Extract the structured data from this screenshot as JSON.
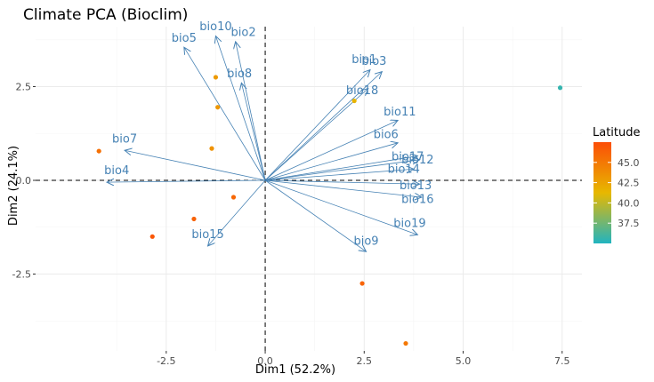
{
  "chart_data": {
    "type": "scatter",
    "title": "Climate PCA (Bioclim)",
    "xlabel": "Dim1 (52.2%)",
    "ylabel": "Dim2 (24.1%)",
    "xlim": [
      -5.8,
      8.0
    ],
    "ylim": [
      -4.55,
      4.1
    ],
    "xticks": [
      -2.5,
      0.0,
      2.5,
      5.0,
      7.5
    ],
    "xtick_labels": [
      "-2.5",
      "0.0",
      "2.5",
      "5.0",
      "7.5"
    ],
    "yticks": [
      -2.5,
      0.0,
      2.5
    ],
    "ytick_labels": [
      "-2.5",
      "0.0",
      "2.5"
    ],
    "grid": true,
    "reference_lines": "dashed lines at x = 0 and y = 0",
    "legend": {
      "title": "Latitude",
      "position": "right",
      "ticks": [
        45.0,
        42.5,
        40.0,
        37.5
      ],
      "tick_labels": [
        "45.0",
        "42.5",
        "40.0",
        "37.5"
      ],
      "range": [
        35.0,
        47.5
      ],
      "gradient_colors": [
        "#21b4c0",
        "#e7b800",
        "#fc4e07"
      ]
    },
    "points": [
      {
        "x": 7.45,
        "y": 2.47,
        "latitude": 35.6
      },
      {
        "x": 2.25,
        "y": 2.12,
        "latitude": 41.5
      },
      {
        "x": -1.25,
        "y": 2.75,
        "latitude": 43.0
      },
      {
        "x": -1.2,
        "y": 1.95,
        "latitude": 43.2
      },
      {
        "x": -1.35,
        "y": 0.85,
        "latitude": 43.5
      },
      {
        "x": -4.2,
        "y": 0.78,
        "latitude": 45.5
      },
      {
        "x": -0.8,
        "y": -0.45,
        "latitude": 46.0
      },
      {
        "x": -1.8,
        "y": -1.03,
        "latitude": 46.3
      },
      {
        "x": -2.85,
        "y": -1.5,
        "latitude": 47.0
      },
      {
        "x": 2.45,
        "y": -2.75,
        "latitude": 46.2
      },
      {
        "x": 3.55,
        "y": -4.35,
        "latitude": 45.0
      }
    ],
    "vectors": [
      {
        "name": "bio1",
        "x": 2.65,
        "y": 2.95,
        "label_x": 2.5,
        "label_y": 3.25
      },
      {
        "name": "bio3",
        "x": 2.95,
        "y": 2.9,
        "label_x": 2.75,
        "label_y": 3.2
      },
      {
        "name": "bio18",
        "x": 2.6,
        "y": 2.45,
        "label_x": 2.45,
        "label_y": 2.42
      },
      {
        "name": "bio11",
        "x": 3.35,
        "y": 1.6,
        "label_x": 3.4,
        "label_y": 1.85
      },
      {
        "name": "bio6",
        "x": 3.35,
        "y": 1.0,
        "label_x": 3.05,
        "label_y": 1.25
      },
      {
        "name": "bio17",
        "x": 3.85,
        "y": 0.65,
        "label_x": 3.6,
        "label_y": 0.65
      },
      {
        "name": "bio12",
        "x": 3.9,
        "y": 0.55,
        "label_x": 3.85,
        "label_y": 0.57
      },
      {
        "name": "bio14",
        "x": 3.75,
        "y": 0.3,
        "label_x": 3.5,
        "label_y": 0.32
      },
      {
        "name": "bio13",
        "x": 3.9,
        "y": -0.1,
        "label_x": 3.8,
        "label_y": -0.12
      },
      {
        "name": "bio16",
        "x": 3.95,
        "y": -0.45,
        "label_x": 3.85,
        "label_y": -0.48
      },
      {
        "name": "bio19",
        "x": 3.85,
        "y": -1.45,
        "label_x": 3.65,
        "label_y": -1.12
      },
      {
        "name": "bio9",
        "x": 2.55,
        "y": -1.9,
        "label_x": 2.55,
        "label_y": -1.6
      },
      {
        "name": "bio15",
        "x": -1.45,
        "y": -1.75,
        "label_x": -1.45,
        "label_y": -1.42
      },
      {
        "name": "bio4",
        "x": -4.0,
        "y": -0.05,
        "label_x": -3.75,
        "label_y": 0.28
      },
      {
        "name": "bio7",
        "x": -3.55,
        "y": 0.8,
        "label_x": -3.55,
        "label_y": 1.12
      },
      {
        "name": "bio5",
        "x": -2.05,
        "y": 3.55,
        "label_x": -2.05,
        "label_y": 3.82
      },
      {
        "name": "bio10",
        "x": -1.25,
        "y": 3.85,
        "label_x": -1.25,
        "label_y": 4.12
      },
      {
        "name": "bio2",
        "x": -0.75,
        "y": 3.7,
        "label_x": -0.55,
        "label_y": 3.97
      },
      {
        "name": "bio8",
        "x": -0.6,
        "y": 2.6,
        "label_x": -0.65,
        "label_y": 2.87
      }
    ],
    "vector_color": "#4682b4"
  }
}
